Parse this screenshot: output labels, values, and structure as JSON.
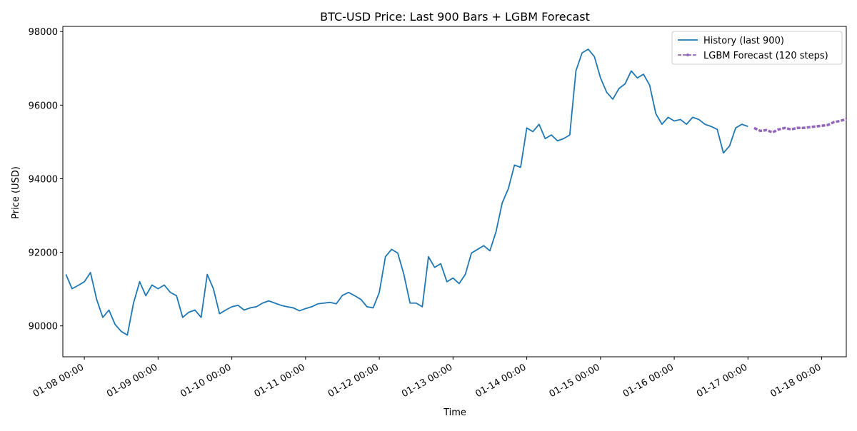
{
  "chart_data": {
    "type": "line",
    "title": "BTC-USD Price: Last 900 Bars + LGBM Forecast",
    "x_label": "Time",
    "y_label": "Price (USD)",
    "xlim": [
      "01-07 17:00",
      "01-18 08:00"
    ],
    "xticks": [
      "01-08 00:00",
      "01-09 00:00",
      "01-10 00:00",
      "01-11 00:00",
      "01-12 00:00",
      "01-13 00:00",
      "01-14 00:00",
      "01-15 00:00",
      "01-16 00:00",
      "01-17 00:00",
      "01-18 00:00"
    ],
    "ylim": [
      89160,
      98140
    ],
    "yticks": [
      90000,
      92000,
      94000,
      96000,
      98000
    ],
    "legend": "upper right",
    "series": [
      {
        "name": "History (last 900)",
        "color": "#1f77b4",
        "style": "solid",
        "x": [
          "01-07 18:00",
          "01-07 20:00",
          "01-07 22:00",
          "01-08 00:00",
          "01-08 02:00",
          "01-08 04:00",
          "01-08 06:00",
          "01-08 08:00",
          "01-08 10:00",
          "01-08 12:00",
          "01-08 14:00",
          "01-08 16:00",
          "01-08 18:00",
          "01-08 20:00",
          "01-08 22:00",
          "01-09 00:00",
          "01-09 02:00",
          "01-09 04:00",
          "01-09 06:00",
          "01-09 08:00",
          "01-09 10:00",
          "01-09 12:00",
          "01-09 14:00",
          "01-09 16:00",
          "01-09 18:00",
          "01-09 20:00",
          "01-09 22:00",
          "01-10 00:00",
          "01-10 02:00",
          "01-10 04:00",
          "01-10 06:00",
          "01-10 08:00",
          "01-10 10:00",
          "01-10 12:00",
          "01-10 14:00",
          "01-10 16:00",
          "01-10 18:00",
          "01-10 20:00",
          "01-10 22:00",
          "01-11 00:00",
          "01-11 02:00",
          "01-11 04:00",
          "01-11 06:00",
          "01-11 08:00",
          "01-11 10:00",
          "01-11 12:00",
          "01-11 14:00",
          "01-11 16:00",
          "01-11 18:00",
          "01-11 20:00",
          "01-11 22:00",
          "01-12 00:00",
          "01-12 02:00",
          "01-12 04:00",
          "01-12 06:00",
          "01-12 08:00",
          "01-12 10:00",
          "01-12 12:00",
          "01-12 14:00",
          "01-12 16:00",
          "01-12 18:00",
          "01-12 20:00",
          "01-12 22:00",
          "01-13 00:00",
          "01-13 02:00",
          "01-13 04:00",
          "01-13 06:00",
          "01-13 08:00",
          "01-13 10:00",
          "01-13 12:00",
          "01-13 14:00",
          "01-13 16:00",
          "01-13 18:00",
          "01-13 20:00",
          "01-13 22:00",
          "01-14 00:00",
          "01-14 02:00",
          "01-14 04:00",
          "01-14 06:00",
          "01-14 08:00",
          "01-14 10:00",
          "01-14 12:00",
          "01-14 14:00",
          "01-14 16:00",
          "01-14 18:00",
          "01-14 20:00",
          "01-14 22:00",
          "01-15 00:00",
          "01-15 02:00",
          "01-15 04:00",
          "01-15 06:00",
          "01-15 08:00",
          "01-15 10:00",
          "01-15 12:00",
          "01-15 14:00",
          "01-15 16:00",
          "01-15 18:00",
          "01-15 20:00",
          "01-15 22:00",
          "01-16 00:00",
          "01-16 02:00",
          "01-16 04:00",
          "01-16 06:00",
          "01-16 08:00",
          "01-16 10:00",
          "01-16 12:00",
          "01-16 14:00",
          "01-16 16:00",
          "01-16 18:00",
          "01-16 20:00",
          "01-16 22:00",
          "01-17 00:00"
        ],
        "values": [
          91400,
          91010,
          91100,
          91200,
          91450,
          90720,
          90230,
          90430,
          90040,
          89850,
          89750,
          90620,
          91200,
          90820,
          91110,
          91010,
          91110,
          90910,
          90820,
          90230,
          90370,
          90430,
          90230,
          91400,
          91010,
          90330,
          90430,
          90520,
          90560,
          90430,
          90490,
          90520,
          90620,
          90680,
          90620,
          90560,
          90520,
          90490,
          90410,
          90470,
          90520,
          90600,
          90620,
          90640,
          90600,
          90830,
          90910,
          90820,
          90720,
          90520,
          90490,
          90910,
          91880,
          92080,
          91980,
          91400,
          90620,
          90620,
          90520,
          91880,
          91590,
          91690,
          91200,
          91300,
          91150,
          91400,
          91980,
          92080,
          92180,
          92040,
          92560,
          93340,
          93730,
          94370,
          94310,
          95380,
          95280,
          95480,
          95090,
          95190,
          95030,
          95090,
          95190,
          96930,
          97420,
          97520,
          97320,
          96740,
          96350,
          96160,
          96450,
          96580,
          96930,
          96740,
          96840,
          96540,
          95770,
          95480,
          95670,
          95570,
          95610,
          95480,
          95670,
          95610,
          95480,
          95420,
          95340,
          94700,
          94890,
          95380,
          95480,
          95420
        ]
      },
      {
        "name": "LGBM Forecast (120 steps)",
        "color": "#9467bd",
        "style": "dashed",
        "x": [
          "01-17 02:00",
          "01-17 04:00",
          "01-17 06:00",
          "01-17 08:00",
          "01-17 10:00",
          "01-17 12:00",
          "01-17 14:00",
          "01-17 16:00",
          "01-17 18:00",
          "01-17 20:00",
          "01-17 22:00",
          "01-18 00:00",
          "01-18 02:00",
          "01-18 04:00",
          "01-18 06:00",
          "01-18 08:00"
        ],
        "values": [
          95380,
          95300,
          95320,
          95260,
          95340,
          95380,
          95340,
          95380,
          95380,
          95400,
          95420,
          95440,
          95460,
          95540,
          95570,
          95620
        ]
      }
    ]
  }
}
